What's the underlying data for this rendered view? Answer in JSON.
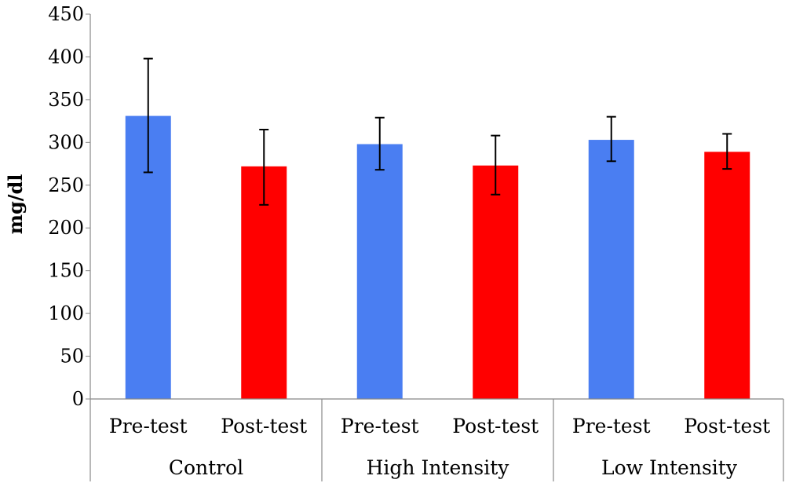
{
  "chart_data": {
    "type": "bar",
    "ylabel": "mg/dl",
    "xlabel": "",
    "title": "",
    "ylim": [
      0,
      450
    ],
    "yticks": [
      0,
      50,
      100,
      150,
      200,
      250,
      300,
      350,
      400,
      450
    ],
    "grid": false,
    "legend": "none",
    "groups": [
      "Control",
      "High Intensity",
      "Low Intensity"
    ],
    "categories": [
      "Pre-test",
      "Post-test",
      "Pre-test",
      "Post-test",
      "Pre-test",
      "Post-test"
    ],
    "values": [
      331,
      272,
      298,
      273,
      303,
      289
    ],
    "error_low": [
      265,
      227,
      268,
      239,
      278,
      269
    ],
    "error_high": [
      398,
      315,
      329,
      308,
      330,
      310
    ],
    "colors": [
      "#4a7ef2",
      "#ff0000",
      "#4a7ef2",
      "#ff0000",
      "#4a7ef2",
      "#ff0000"
    ]
  }
}
